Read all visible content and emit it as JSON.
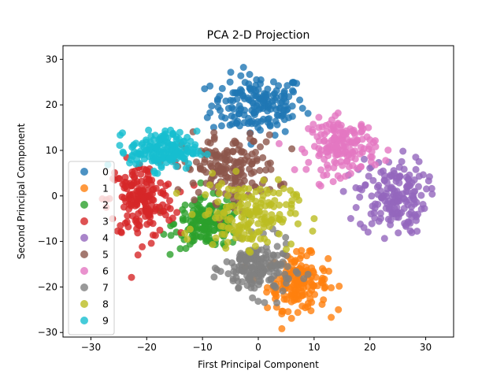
{
  "chart_data": {
    "type": "scatter",
    "title": "PCA 2-D Projection",
    "xlabel": "First Principal Component",
    "ylabel": "Second Principal Component",
    "xlim": [
      -35,
      35
    ],
    "ylim": [
      -31,
      33
    ],
    "xticks": [
      -30,
      -20,
      -10,
      0,
      10,
      20,
      30
    ],
    "yticks": [
      -30,
      -20,
      -10,
      0,
      10,
      20,
      30
    ],
    "grid": false,
    "legend_placement": "center-left",
    "point_alpha": 0.8,
    "series": [
      {
        "name": "0",
        "color": "#1f77b4",
        "center": [
          0,
          20
        ],
        "spread": [
          7,
          5.5
        ],
        "count": 170
      },
      {
        "name": "1",
        "color": "#ff7f0e",
        "center": [
          7,
          -19
        ],
        "spread": [
          4.5,
          5
        ],
        "count": 170
      },
      {
        "name": "2",
        "color": "#2ca02c",
        "center": [
          -9,
          -6
        ],
        "spread": [
          5,
          4.5
        ],
        "count": 170
      },
      {
        "name": "3",
        "color": "#d62728",
        "center": [
          -21,
          -1
        ],
        "spread": [
          5,
          7
        ],
        "count": 170
      },
      {
        "name": "4",
        "color": "#9467bd",
        "center": [
          24,
          0
        ],
        "spread": [
          5,
          7
        ],
        "count": 170
      },
      {
        "name": "5",
        "color": "#8c564b",
        "center": [
          -5,
          6
        ],
        "spread": [
          7,
          6
        ],
        "count": 170
      },
      {
        "name": "6",
        "color": "#e377c2",
        "center": [
          15,
          11
        ],
        "spread": [
          5,
          5
        ],
        "count": 170
      },
      {
        "name": "7",
        "color": "#7f7f7f",
        "center": [
          0,
          -16
        ],
        "spread": [
          5,
          5
        ],
        "count": 170
      },
      {
        "name": "8",
        "color": "#bcbd22",
        "center": [
          -2,
          -4
        ],
        "spread": [
          7,
          6
        ],
        "count": 170
      },
      {
        "name": "9",
        "color": "#17becf",
        "center": [
          -17,
          10
        ],
        "spread": [
          5,
          3.5
        ],
        "count": 170
      }
    ]
  }
}
